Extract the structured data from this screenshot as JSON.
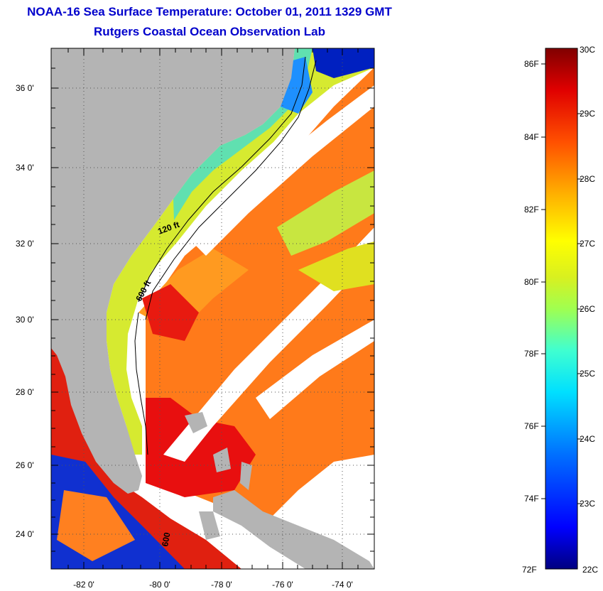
{
  "header": {
    "title": "NOAA-16 Sea Surface Temperature:  October 01, 2011 1329 GMT",
    "subtitle": "Rutgers Coastal Ocean Observation Lab"
  },
  "map": {
    "lat_labels": [
      "36 0'",
      "34 0'",
      "32 0'",
      "30 0'",
      "28 0'",
      "26 0'",
      "24 0'"
    ],
    "lon_labels": [
      "-82 0'",
      "-80 0'",
      "-78 0'",
      "-76 0'",
      "-74 0'"
    ],
    "contours": {
      "shelf_120": "120 ft",
      "slope_600": "600 ft",
      "deep_label": "600"
    },
    "colors": {
      "land": "#b4b4b4",
      "cloud": "#ffffff"
    }
  },
  "colorbar": {
    "fahrenheit_labels": [
      "86F",
      "84F",
      "82F",
      "80F",
      "78F",
      "76F",
      "74F",
      "72F"
    ],
    "celsius_labels": [
      "30C",
      "29C",
      "28C",
      "27C",
      "26C",
      "25C",
      "24C",
      "23C",
      "22C"
    ],
    "range_c": [
      22,
      30
    ],
    "palette": [
      "#000080",
      "#0000ff",
      "#0080ff",
      "#00e0ff",
      "#40ffc0",
      "#c0ff40",
      "#ffff00",
      "#ffa000",
      "#ff4000",
      "#e00000",
      "#800000"
    ]
  }
}
